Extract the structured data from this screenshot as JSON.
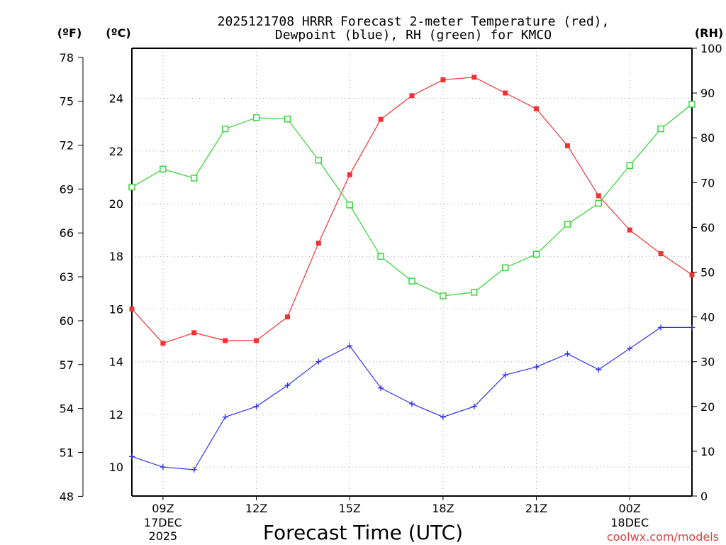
{
  "chart_data": {
    "type": "line",
    "title_line1": "2025121708 HRRR Forecast 2-meter Temperature (red),",
    "title_line2": "Dewpoint (blue), RH (green) for KMCO",
    "xlabel": "Forecast Time (UTC)",
    "credit": "coolwx.com/models",
    "axis_units": {
      "fahrenheit": "(ºF)",
      "celsius": "(ºC)",
      "rh": "(RH)"
    },
    "x_hours": [
      8,
      9,
      10,
      11,
      12,
      13,
      14,
      15,
      16,
      17,
      18,
      19,
      20,
      21,
      22,
      23,
      24,
      25,
      26
    ],
    "xlim": [
      8,
      26
    ],
    "x_ticks": [
      {
        "hour": 9,
        "label": "09Z",
        "date": "17DEC",
        "year": "2025"
      },
      {
        "hour": 12,
        "label": "12Z",
        "date": "",
        "year": ""
      },
      {
        "hour": 15,
        "label": "15Z",
        "date": "",
        "year": ""
      },
      {
        "hour": 18,
        "label": "18Z",
        "date": "",
        "year": ""
      },
      {
        "hour": 21,
        "label": "21Z",
        "date": "",
        "year": ""
      },
      {
        "hour": 24,
        "label": "00Z",
        "date": "18DEC",
        "year": ""
      }
    ],
    "celsius_axis": {
      "ylim": [
        8.9,
        25.9
      ],
      "ticks": [
        10,
        12,
        14,
        16,
        18,
        20,
        22,
        24
      ]
    },
    "fahrenheit_axis": {
      "ticks": [
        48,
        51,
        54,
        57,
        60,
        63,
        66,
        69,
        72,
        75,
        78
      ]
    },
    "rh_axis": {
      "ylim": [
        0,
        100
      ],
      "ticks": [
        0,
        10,
        20,
        30,
        40,
        50,
        60,
        70,
        80,
        90,
        100
      ]
    },
    "series": [
      {
        "name": "Temperature",
        "units": "degC",
        "color": "#f03232",
        "marker": "filled-square",
        "values": [
          16.0,
          14.7,
          15.1,
          14.8,
          14.8,
          15.7,
          18.5,
          21.1,
          23.2,
          24.1,
          24.7,
          24.8,
          24.2,
          23.6,
          22.2,
          20.3,
          19.0,
          18.1,
          17.3
        ]
      },
      {
        "name": "Dewpoint",
        "units": "degC",
        "color": "#3232f0",
        "marker": "plus",
        "values": [
          10.4,
          10.0,
          9.9,
          11.9,
          12.3,
          13.1,
          14.0,
          14.6,
          13.0,
          12.4,
          11.9,
          12.3,
          13.5,
          13.8,
          14.3,
          13.7,
          14.5,
          15.3,
          15.3
        ]
      },
      {
        "name": "RH",
        "units": "percent",
        "color": "#32d232",
        "marker": "open-square",
        "values": [
          69,
          73,
          71,
          82,
          84.5,
          84.2,
          75,
          65,
          53.5,
          48,
          44.7,
          45.5,
          51,
          54,
          60.7,
          65.4,
          73.8,
          82,
          87.5
        ]
      }
    ]
  }
}
